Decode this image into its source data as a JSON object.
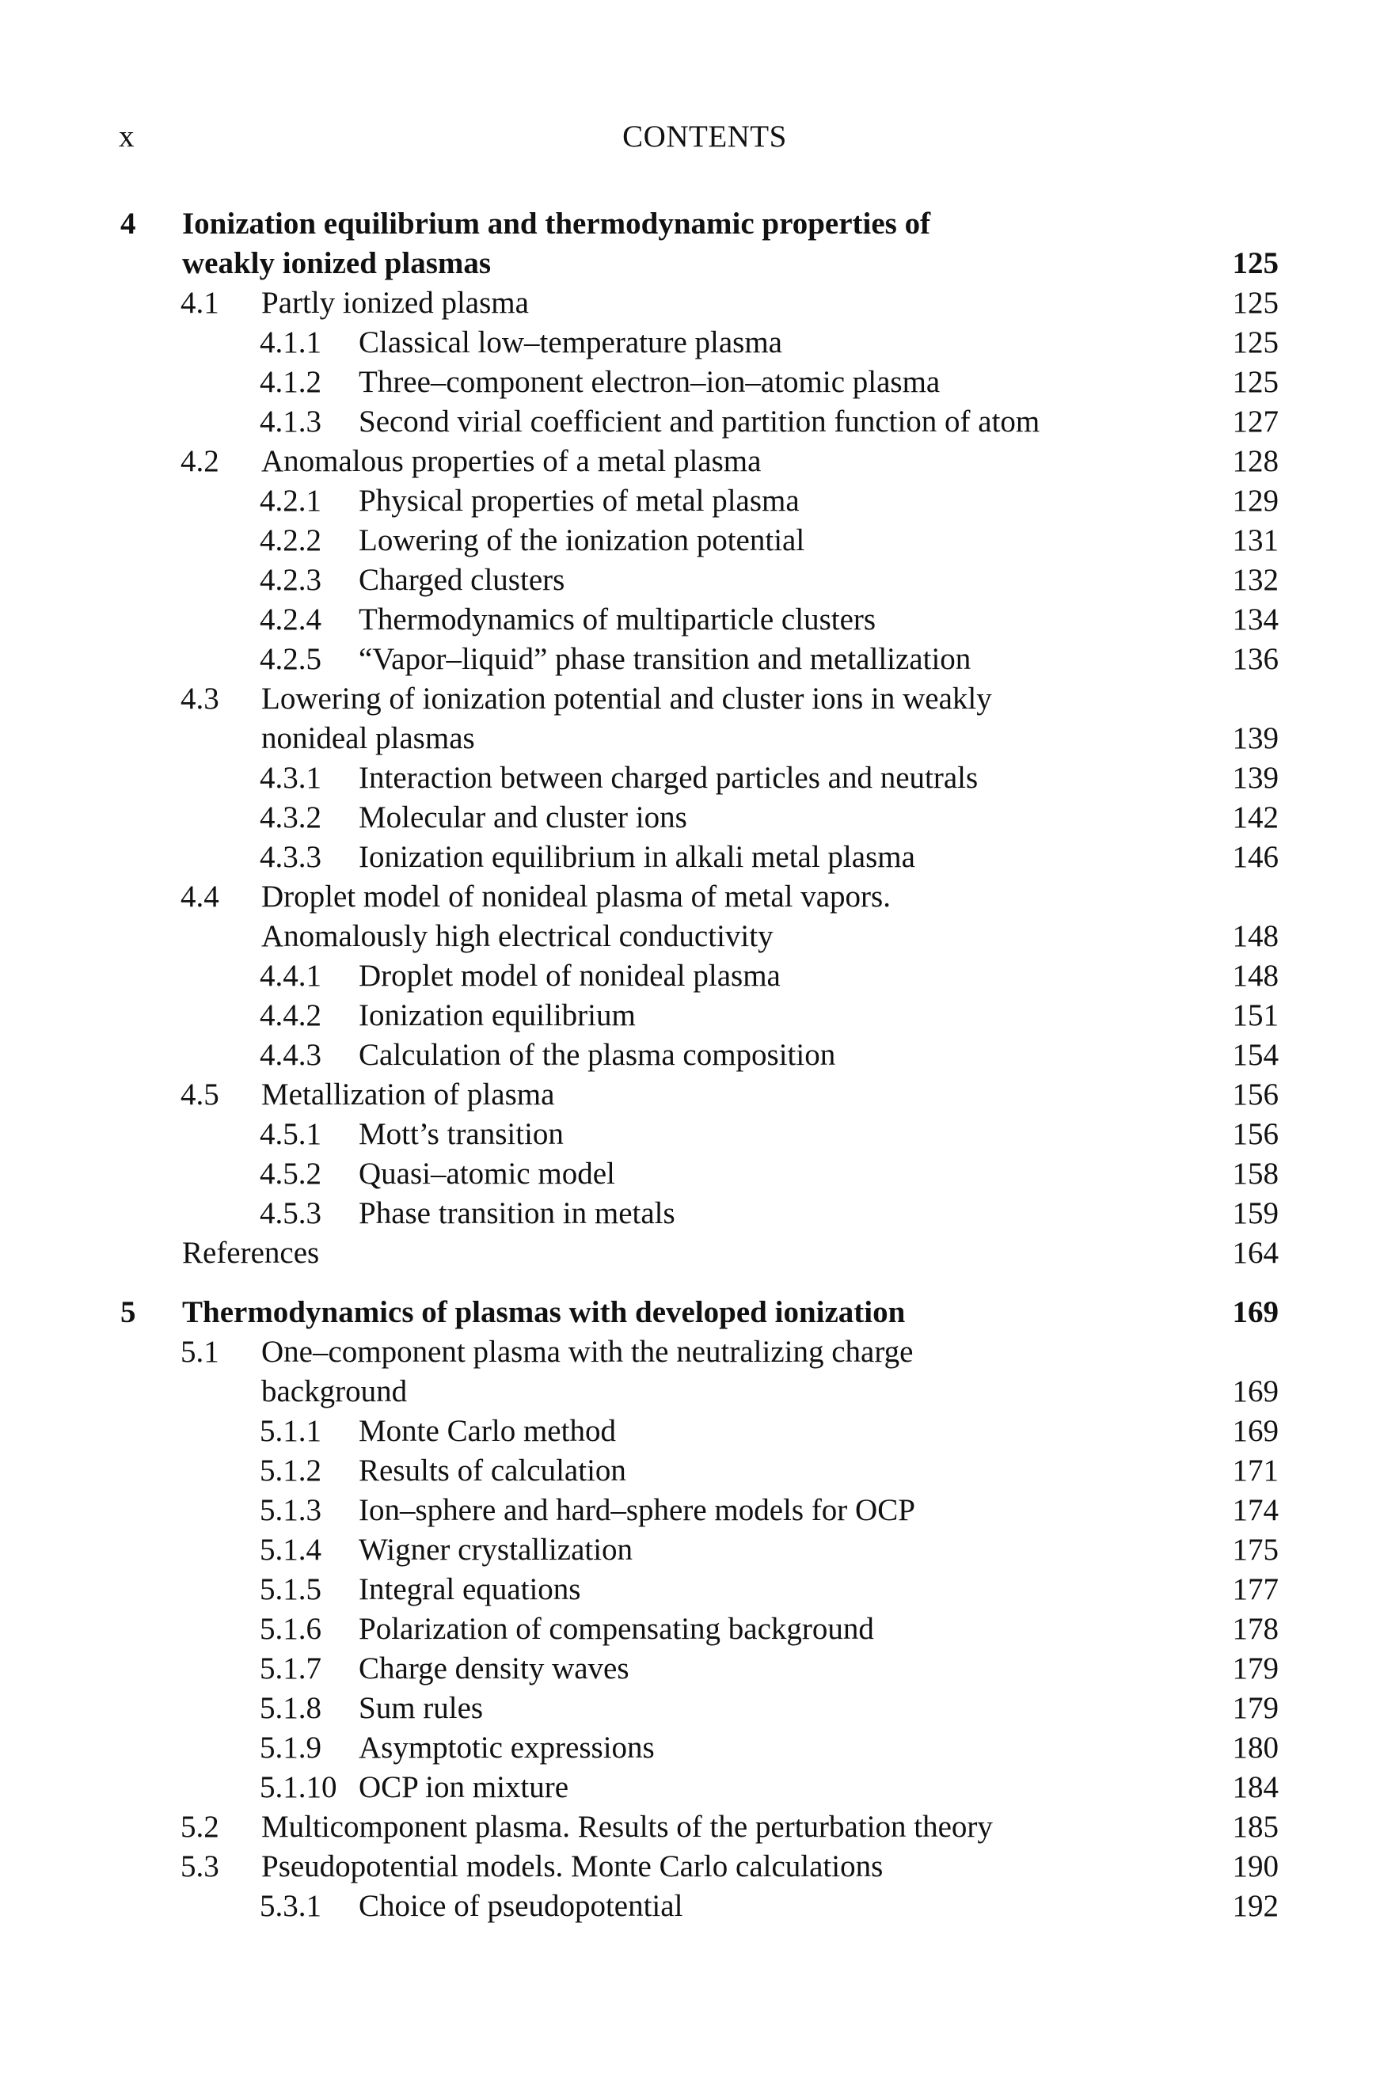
{
  "header": {
    "page_number": "x",
    "running_head": "CONTENTS"
  },
  "entries": [
    {
      "level": 0,
      "num": "4",
      "lines": [
        "Ionization equilibrium and thermodynamic properties of",
        "weakly ionized plasmas"
      ],
      "page": "125"
    },
    {
      "level": 1,
      "num": "4.1",
      "lines": [
        "Partly ionized plasma"
      ],
      "page": "125"
    },
    {
      "level": 2,
      "num": "4.1.1",
      "lines": [
        "Classical low–temperature plasma"
      ],
      "page": "125"
    },
    {
      "level": 2,
      "num": "4.1.2",
      "lines": [
        "Three–component electron–ion–atomic plasma"
      ],
      "page": "125"
    },
    {
      "level": 2,
      "num": "4.1.3",
      "lines": [
        "Second virial coefficient and partition function of atom"
      ],
      "page": "127"
    },
    {
      "level": 1,
      "num": "4.2",
      "lines": [
        "Anomalous properties of a metal plasma"
      ],
      "page": "128"
    },
    {
      "level": 2,
      "num": "4.2.1",
      "lines": [
        "Physical properties of metal plasma"
      ],
      "page": "129"
    },
    {
      "level": 2,
      "num": "4.2.2",
      "lines": [
        "Lowering of the ionization potential"
      ],
      "page": "131"
    },
    {
      "level": 2,
      "num": "4.2.3",
      "lines": [
        "Charged clusters"
      ],
      "page": "132"
    },
    {
      "level": 2,
      "num": "4.2.4",
      "lines": [
        "Thermodynamics of multiparticle clusters"
      ],
      "page": "134"
    },
    {
      "level": 2,
      "num": "4.2.5",
      "lines": [
        "“Vapor–liquid” phase transition and metallization"
      ],
      "page": "136"
    },
    {
      "level": 1,
      "num": "4.3",
      "lines": [
        "Lowering of ionization potential and cluster ions in weakly",
        "nonideal plasmas"
      ],
      "page": "139"
    },
    {
      "level": 2,
      "num": "4.3.1",
      "lines": [
        "Interaction between charged particles and neutrals"
      ],
      "page": "139"
    },
    {
      "level": 2,
      "num": "4.3.2",
      "lines": [
        "Molecular and cluster ions"
      ],
      "page": "142"
    },
    {
      "level": 2,
      "num": "4.3.3",
      "lines": [
        "Ionization equilibrium in alkali metal plasma"
      ],
      "page": "146"
    },
    {
      "level": 1,
      "num": "4.4",
      "lines": [
        "Droplet model of nonideal plasma of metal vapors.",
        "Anomalously high electrical conductivity"
      ],
      "page": "148"
    },
    {
      "level": 2,
      "num": "4.4.1",
      "lines": [
        "Droplet model of nonideal plasma"
      ],
      "page": "148"
    },
    {
      "level": 2,
      "num": "4.4.2",
      "lines": [
        "Ionization equilibrium"
      ],
      "page": "151"
    },
    {
      "level": 2,
      "num": "4.4.3",
      "lines": [
        "Calculation of the plasma composition"
      ],
      "page": "154"
    },
    {
      "level": 1,
      "num": "4.5",
      "lines": [
        "Metallization of plasma"
      ],
      "page": "156"
    },
    {
      "level": 2,
      "num": "4.5.1",
      "lines": [
        "Mott’s transition"
      ],
      "page": "156"
    },
    {
      "level": 2,
      "num": "4.5.2",
      "lines": [
        "Quasi–atomic model"
      ],
      "page": "158"
    },
    {
      "level": 2,
      "num": "4.5.3",
      "lines": [
        "Phase transition in metals"
      ],
      "page": "159"
    },
    {
      "level": "ref",
      "num": "",
      "lines": [
        "References"
      ],
      "page": "164"
    },
    {
      "level": 0,
      "num": "5",
      "lines": [
        "Thermodynamics of plasmas with developed ionization"
      ],
      "page": "169"
    },
    {
      "level": 1,
      "num": "5.1",
      "lines": [
        "One–component plasma with the neutralizing charge",
        "background"
      ],
      "page": "169"
    },
    {
      "level": 2,
      "num": "5.1.1",
      "lines": [
        "Monte Carlo method"
      ],
      "page": "169"
    },
    {
      "level": 2,
      "num": "5.1.2",
      "lines": [
        "Results of calculation"
      ],
      "page": "171"
    },
    {
      "level": 2,
      "num": "5.1.3",
      "lines": [
        "Ion–sphere and hard–sphere models for OCP"
      ],
      "page": "174"
    },
    {
      "level": 2,
      "num": "5.1.4",
      "lines": [
        "Wigner crystallization"
      ],
      "page": "175"
    },
    {
      "level": 2,
      "num": "5.1.5",
      "lines": [
        "Integral equations"
      ],
      "page": "177"
    },
    {
      "level": 2,
      "num": "5.1.6",
      "lines": [
        "Polarization of compensating background"
      ],
      "page": "178"
    },
    {
      "level": 2,
      "num": "5.1.7",
      "lines": [
        "Charge density waves"
      ],
      "page": "179"
    },
    {
      "level": 2,
      "num": "5.1.8",
      "lines": [
        "Sum rules"
      ],
      "page": "179"
    },
    {
      "level": 2,
      "num": "5.1.9",
      "lines": [
        "Asymptotic expressions"
      ],
      "page": "180"
    },
    {
      "level": 2,
      "num": "5.1.10",
      "lines": [
        "OCP ion mixture"
      ],
      "page": "184"
    },
    {
      "level": 1,
      "num": "5.2",
      "lines": [
        "Multicomponent plasma. Results of the perturbation theory"
      ],
      "page": "185"
    },
    {
      "level": 1,
      "num": "5.3",
      "lines": [
        "Pseudopotential models. Monte Carlo calculations"
      ],
      "page": "190"
    },
    {
      "level": 2,
      "num": "5.3.1",
      "lines": [
        "Choice of pseudopotential"
      ],
      "page": "192"
    }
  ]
}
